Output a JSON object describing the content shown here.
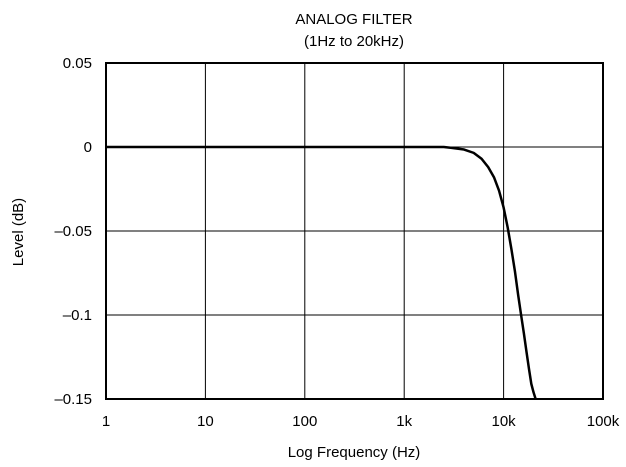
{
  "chart_data": {
    "type": "line",
    "title": "ANALOG FILTER",
    "subtitle": "(1Hz to 20kHz)",
    "xlabel": "Log Frequency (Hz)",
    "ylabel": "Level (dB)",
    "x_scale": "log",
    "xlim": [
      1,
      100000
    ],
    "ylim": [
      -0.15,
      0.05
    ],
    "x_ticks": [
      1,
      10,
      100,
      1000,
      10000,
      100000
    ],
    "x_tick_labels": [
      "1",
      "10",
      "100",
      "1k",
      "10k",
      "100k"
    ],
    "y_ticks": [
      0.05,
      0,
      -0.05,
      -0.1,
      -0.15
    ],
    "y_tick_labels": [
      "0.05",
      "0",
      "–0.05",
      "–0.1",
      "–0.15"
    ],
    "grid": true,
    "line_color": "#000000",
    "series": [
      {
        "x": [
          1,
          10,
          100,
          1000,
          2000,
          2500,
          3000,
          4000,
          5000,
          6000,
          7000,
          8000,
          9000,
          10000,
          11000,
          12000,
          13000,
          14000,
          15000,
          16000,
          17000,
          18000,
          19000,
          20000,
          21000
        ],
        "values": [
          0,
          0,
          0,
          0,
          0,
          0,
          -0.0005,
          -0.0015,
          -0.0035,
          -0.007,
          -0.012,
          -0.018,
          -0.026,
          -0.036,
          -0.048,
          -0.061,
          -0.074,
          -0.088,
          -0.1,
          -0.111,
          -0.122,
          -0.132,
          -0.141,
          -0.146,
          -0.15
        ]
      }
    ]
  }
}
